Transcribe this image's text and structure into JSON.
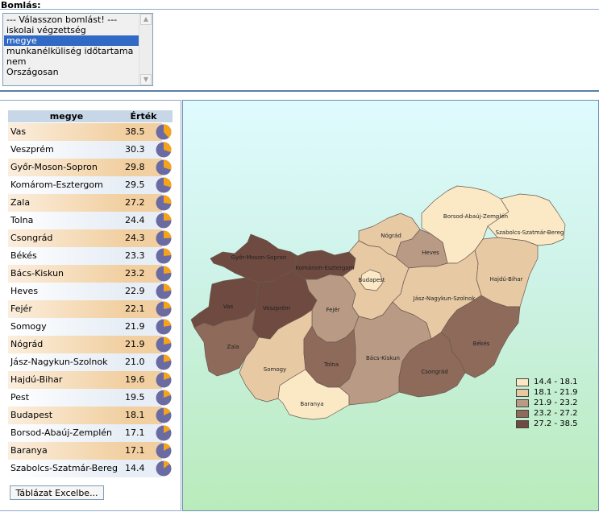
{
  "bomlas": {
    "label": "Bomlás:",
    "options": [
      "--- Válasszon bomlást! ---",
      "iskolai végzettség",
      "megye",
      "munkanélküliség időtartama",
      "nem",
      "Országosan"
    ],
    "selected_index": 2,
    "scroll_up_icon": "scroll-up-icon",
    "scroll_down_icon": "scroll-down-icon"
  },
  "table": {
    "header_name": "megye",
    "header_value": "Érték",
    "rows": [
      {
        "name": "Vas",
        "value": "38.5"
      },
      {
        "name": "Veszprém",
        "value": "30.3"
      },
      {
        "name": "Győr-Moson-Sopron",
        "value": "29.8"
      },
      {
        "name": "Komárom-Esztergom",
        "value": "29.5"
      },
      {
        "name": "Zala",
        "value": "27.2"
      },
      {
        "name": "Tolna",
        "value": "24.4"
      },
      {
        "name": "Csongrád",
        "value": "24.3"
      },
      {
        "name": "Békés",
        "value": "23.3"
      },
      {
        "name": "Bács-Kiskun",
        "value": "23.2"
      },
      {
        "name": "Heves",
        "value": "22.9"
      },
      {
        "name": "Fejér",
        "value": "22.1"
      },
      {
        "name": "Somogy",
        "value": "21.9"
      },
      {
        "name": "Nógrád",
        "value": "21.9"
      },
      {
        "name": "Jász-Nagykun-Szolnok",
        "value": "21.0"
      },
      {
        "name": "Hajdú-Bihar",
        "value": "19.6"
      },
      {
        "name": "Pest",
        "value": "19.5"
      },
      {
        "name": "Budapest",
        "value": "18.1"
      },
      {
        "name": "Borsod-Abaúj-Zemplén",
        "value": "17.1"
      },
      {
        "name": "Baranya",
        "value": "17.1"
      },
      {
        "name": "Szabolcs-Szatmár-Bereg",
        "value": "14.4"
      }
    ],
    "pie_colors": {
      "share": "#f5a31a",
      "rest": "#6b6ba3"
    },
    "excel_button": "Táblázat Excelbe..."
  },
  "map": {
    "labels": {
      "Vas": "Vas",
      "Veszprém": "Veszprém",
      "Győr-Moson-Sopron": "Győr-Moson-Sopron",
      "Komárom-Esztergom": "Komárom-Esztergom",
      "Zala": "Zala",
      "Tolna": "Tolna",
      "Csongrád": "Csongrád",
      "Békés": "Békés",
      "Bács-Kiskun": "Bács-Kiskun",
      "Heves": "Heves",
      "Fejér": "Fejér",
      "Somogy": "Somogy",
      "Nógrád": "Nógrád",
      "Jász-Nagykun-Szolnok": "Jász-Nagykun-Szolnok",
      "Hajdú-Bihar": "Hajdú-Bihar",
      "Budapest": "Budapest",
      "Borsod-Abaúj-Zemplén": "Borsod-Abaúj-Zemplén",
      "Baranya": "Baranya",
      "Szabolcs-Szatmár-Bereg": "Szabolcs-Szatmár-Bereg"
    },
    "colors": [
      "#fbe9c6",
      "#e7c9a4",
      "#b99a85",
      "#8e6a5a",
      "#6e4a40"
    ],
    "legend": [
      "14.4 - 18.1",
      "18.1 - 21.9",
      "21.9 - 23.2",
      "23.2 - 27.2",
      "27.2 - 38.5"
    ]
  }
}
